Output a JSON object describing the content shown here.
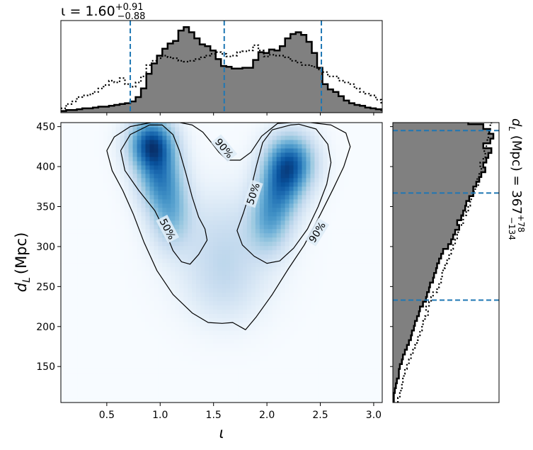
{
  "chart_data": {
    "type": "heatmap",
    "subtype": "corner plot: 2D posterior density with marginal histograms",
    "x_symbol": "ι",
    "y_symbol": "d",
    "y_subscript": "L",
    "y_unit": "(Mpc)",
    "top_title": {
      "prefix": "ι = 1.60",
      "sup": "+0.91",
      "sub": "−0.88"
    },
    "right_title": {
      "prefix": " (Mpc) = 367",
      "sup": "+78",
      "sub": "−134"
    },
    "x_range": [
      0.07,
      3.08
    ],
    "y_range": [
      105,
      455
    ],
    "x_ticks": [
      0.5,
      1.0,
      1.5,
      2.0,
      2.5,
      3.0
    ],
    "x_tick_labels": [
      "0.5",
      "1.0",
      "1.5",
      "2.0",
      "2.5",
      "3.0"
    ],
    "y_ticks": [
      150,
      200,
      250,
      300,
      350,
      400,
      450
    ],
    "y_tick_labels": [
      "150",
      "200",
      "250",
      "300",
      "350",
      "400",
      "450"
    ],
    "iota_median": 1.6,
    "iota_interval": [
      0.72,
      2.51
    ],
    "dl_median": 367,
    "dl_interval": [
      233,
      445
    ],
    "colormap": "Blues",
    "colors": {
      "filled_hist": "#808080",
      "quantile_line": "#1f77b4",
      "contour": "#000000"
    },
    "density_components": [
      {
        "mx": 0.92,
        "my": 428,
        "sx": 0.14,
        "sy": 22,
        "w": 1.0
      },
      {
        "mx": 1.0,
        "my": 385,
        "sx": 0.14,
        "sy": 26,
        "w": 0.6
      },
      {
        "mx": 1.1,
        "my": 340,
        "sx": 0.13,
        "sy": 28,
        "w": 0.4
      },
      {
        "mx": 2.22,
        "my": 405,
        "sx": 0.15,
        "sy": 24,
        "w": 0.85
      },
      {
        "mx": 2.12,
        "my": 370,
        "sx": 0.14,
        "sy": 26,
        "w": 0.55
      },
      {
        "mx": 2.02,
        "my": 330,
        "sx": 0.13,
        "sy": 26,
        "w": 0.4
      },
      {
        "mx": 1.6,
        "my": 300,
        "sx": 0.3,
        "sy": 45,
        "w": 0.22
      },
      {
        "mx": 1.6,
        "my": 245,
        "sx": 0.22,
        "sy": 30,
        "w": 0.1
      }
    ],
    "contours": [
      {
        "label": "50%",
        "label_positions": [
          {
            "x": 1.07,
            "y": 322,
            "angle": 62
          },
          {
            "x": 1.87,
            "y": 366,
            "angle": -72
          }
        ],
        "paths": [
          [
            [
              0.9,
              452
            ],
            [
              0.72,
              440
            ],
            [
              0.63,
              420
            ],
            [
              0.67,
              395
            ],
            [
              0.8,
              370
            ],
            [
              0.95,
              345
            ],
            [
              1.05,
              318
            ],
            [
              1.12,
              295
            ],
            [
              1.2,
              281
            ],
            [
              1.28,
              278
            ],
            [
              1.36,
              290
            ],
            [
              1.44,
              308
            ],
            [
              1.42,
              322
            ],
            [
              1.36,
              337
            ],
            [
              1.3,
              362
            ],
            [
              1.24,
              392
            ],
            [
              1.18,
              420
            ],
            [
              1.12,
              440
            ],
            [
              1.02,
              452
            ],
            [
              0.9,
              452
            ]
          ],
          [
            [
              2.22,
              452
            ],
            [
              2.05,
              446
            ],
            [
              1.96,
              430
            ],
            [
              1.9,
              400
            ],
            [
              1.85,
              372
            ],
            [
              1.78,
              342
            ],
            [
              1.72,
              320
            ],
            [
              1.77,
              302
            ],
            [
              1.88,
              288
            ],
            [
              2.0,
              279
            ],
            [
              2.12,
              282
            ],
            [
              2.25,
              298
            ],
            [
              2.38,
              322
            ],
            [
              2.48,
              350
            ],
            [
              2.56,
              378
            ],
            [
              2.6,
              405
            ],
            [
              2.57,
              428
            ],
            [
              2.46,
              447
            ],
            [
              2.3,
              453
            ],
            [
              2.22,
              452
            ]
          ]
        ]
      },
      {
        "label": "90%",
        "label_positions": [
          {
            "x": 1.6,
            "y": 423,
            "angle": 50
          },
          {
            "x": 2.47,
            "y": 318,
            "angle": -58
          }
        ],
        "paths": [
          [
            [
              0.95,
              456
            ],
            [
              0.72,
              450
            ],
            [
              0.57,
              437
            ],
            [
              0.5,
              420
            ],
            [
              0.55,
              395
            ],
            [
              0.65,
              370
            ],
            [
              0.75,
              340
            ],
            [
              0.85,
              305
            ],
            [
              0.97,
              270
            ],
            [
              1.12,
              240
            ],
            [
              1.3,
              217
            ],
            [
              1.45,
              205
            ],
            [
              1.58,
              204
            ],
            [
              1.68,
              205
            ],
            [
              1.8,
              196
            ],
            [
              1.9,
              212
            ],
            [
              2.05,
              240
            ],
            [
              2.2,
              272
            ],
            [
              2.35,
              302
            ],
            [
              2.5,
              340
            ],
            [
              2.62,
              372
            ],
            [
              2.72,
              400
            ],
            [
              2.78,
              425
            ],
            [
              2.74,
              442
            ],
            [
              2.6,
              452
            ],
            [
              2.35,
              456
            ],
            [
              2.1,
              454
            ],
            [
              1.95,
              438
            ],
            [
              1.85,
              418
            ],
            [
              1.75,
              408
            ],
            [
              1.63,
              408
            ],
            [
              1.55,
              418
            ],
            [
              1.48,
              430
            ],
            [
              1.4,
              443
            ],
            [
              1.3,
              452
            ],
            [
              1.15,
              456
            ],
            [
              0.95,
              456
            ]
          ]
        ]
      }
    ],
    "top_histograms": {
      "bin_edges_start": 0.07,
      "bin_width": 0.05,
      "filled": [
        0.02,
        0.03,
        0.03,
        0.04,
        0.05,
        0.05,
        0.06,
        0.07,
        0.07,
        0.08,
        0.09,
        0.1,
        0.11,
        0.13,
        0.18,
        0.28,
        0.45,
        0.57,
        0.66,
        0.74,
        0.8,
        0.83,
        0.95,
        0.99,
        0.93,
        0.86,
        0.79,
        0.77,
        0.72,
        0.62,
        0.54,
        0.53,
        0.51,
        0.51,
        0.52,
        0.52,
        0.61,
        0.7,
        0.69,
        0.73,
        0.72,
        0.77,
        0.86,
        0.91,
        0.93,
        0.9,
        0.82,
        0.69,
        0.52,
        0.33,
        0.27,
        0.24,
        0.19,
        0.14,
        0.11,
        0.09,
        0.08,
        0.06,
        0.05,
        0.04,
        0.03
      ],
      "dotted": [
        0.05,
        0.1,
        0.13,
        0.18,
        0.2,
        0.21,
        0.24,
        0.28,
        0.32,
        0.37,
        0.35,
        0.4,
        0.33,
        0.3,
        0.35,
        0.42,
        0.55,
        0.6,
        0.63,
        0.66,
        0.64,
        0.63,
        0.6,
        0.59,
        0.6,
        0.62,
        0.64,
        0.66,
        0.68,
        0.7,
        0.68,
        0.65,
        0.66,
        0.7,
        0.71,
        0.72,
        0.78,
        0.72,
        0.65,
        0.67,
        0.66,
        0.66,
        0.64,
        0.6,
        0.58,
        0.55,
        0.55,
        0.53,
        0.5,
        0.47,
        0.42,
        0.42,
        0.37,
        0.35,
        0.33,
        0.28,
        0.24,
        0.22,
        0.2,
        0.15,
        0.1
      ]
    },
    "right_histograms": {
      "bin_edges_start": 105,
      "bin_width": 6,
      "filled": [
        0.01,
        0.01,
        0.02,
        0.03,
        0.04,
        0.06,
        0.06,
        0.07,
        0.09,
        0.1,
        0.12,
        0.14,
        0.16,
        0.18,
        0.19,
        0.21,
        0.22,
        0.24,
        0.26,
        0.27,
        0.3,
        0.33,
        0.34,
        0.36,
        0.37,
        0.4,
        0.41,
        0.43,
        0.44,
        0.46,
        0.48,
        0.5,
        0.55,
        0.58,
        0.6,
        0.62,
        0.66,
        0.64,
        0.68,
        0.7,
        0.72,
        0.73,
        0.76,
        0.8,
        0.8,
        0.83,
        0.86,
        0.88,
        0.92,
        0.9,
        0.93,
        0.95,
        0.98,
        0.9,
        0.97,
        1.0,
        0.96,
        0.9,
        0.75
      ],
      "dotted": [
        0.05,
        0.07,
        0.08,
        0.09,
        0.1,
        0.11,
        0.12,
        0.14,
        0.16,
        0.18,
        0.2,
        0.22,
        0.24,
        0.25,
        0.27,
        0.29,
        0.3,
        0.32,
        0.35,
        0.33,
        0.36,
        0.38,
        0.4,
        0.44,
        0.46,
        0.48,
        0.49,
        0.5,
        0.52,
        0.54,
        0.56,
        0.58,
        0.6,
        0.62,
        0.64,
        0.65,
        0.66,
        0.7,
        0.7,
        0.73,
        0.75,
        0.77,
        0.78,
        0.8,
        0.82,
        0.85,
        0.84,
        0.86,
        0.88,
        0.87,
        0.9,
        0.92,
        0.91,
        0.93,
        0.94,
        0.95,
        0.96,
        0.97,
        0.98
      ]
    }
  }
}
